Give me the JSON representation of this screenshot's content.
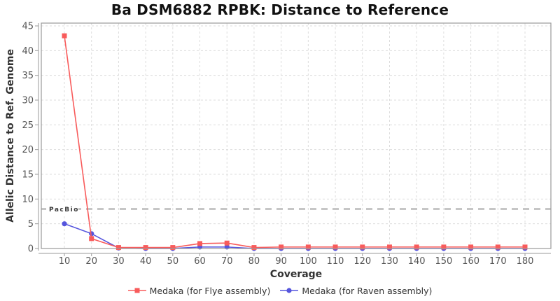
{
  "title": "Ba DSM6882 RPBK: Distance to Reference",
  "chart_data": {
    "type": "line",
    "title": "Ba DSM6882 RPBK: Distance to Reference",
    "xlabel": "Coverage",
    "ylabel": "Allelic Distance to Ref. Genome",
    "x": [
      10,
      20,
      30,
      40,
      50,
      60,
      70,
      80,
      90,
      100,
      110,
      120,
      130,
      140,
      150,
      160,
      170,
      180
    ],
    "series": [
      {
        "name": "Medaka (for Flye assembly)",
        "marker": "square",
        "color": "#f85b5b",
        "values": [
          43,
          2,
          0.2,
          0.2,
          0.2,
          1.0,
          1.1,
          0.2,
          0.3,
          0.3,
          0.3,
          0.3,
          0.3,
          0.3,
          0.3,
          0.3,
          0.3,
          0.3
        ]
      },
      {
        "name": "Medaka (for Raven assembly)",
        "marker": "circle",
        "color": "#5555dd",
        "values": [
          5,
          3,
          0.1,
          0.0,
          0.0,
          0.3,
          0.3,
          0.0,
          0.0,
          0.0,
          0.0,
          0.0,
          0.0,
          0.0,
          0.0,
          0.0,
          0.0,
          0.0
        ]
      }
    ],
    "reference_line": {
      "label": "PacBio",
      "value": 8,
      "color": "#c6c6c6",
      "style": "dashed"
    },
    "xticks": [
      10,
      20,
      30,
      40,
      50,
      60,
      70,
      80,
      90,
      100,
      110,
      120,
      130,
      140,
      150,
      160,
      170,
      180
    ],
    "yticks": [
      0,
      5,
      10,
      15,
      20,
      25,
      30,
      35,
      40,
      45
    ],
    "ylim": [
      0,
      45
    ],
    "grid": true,
    "legend_position": "bottom",
    "colors": {
      "grid": "#dcdcdc",
      "plot_border": "#9a9a9a",
      "axis_spine": "#9a9a9a",
      "tick_label": "#555555",
      "axis_label": "#333333",
      "title": "#111111",
      "reference_label": "#3a3a3a",
      "background": "#ffffff"
    }
  }
}
